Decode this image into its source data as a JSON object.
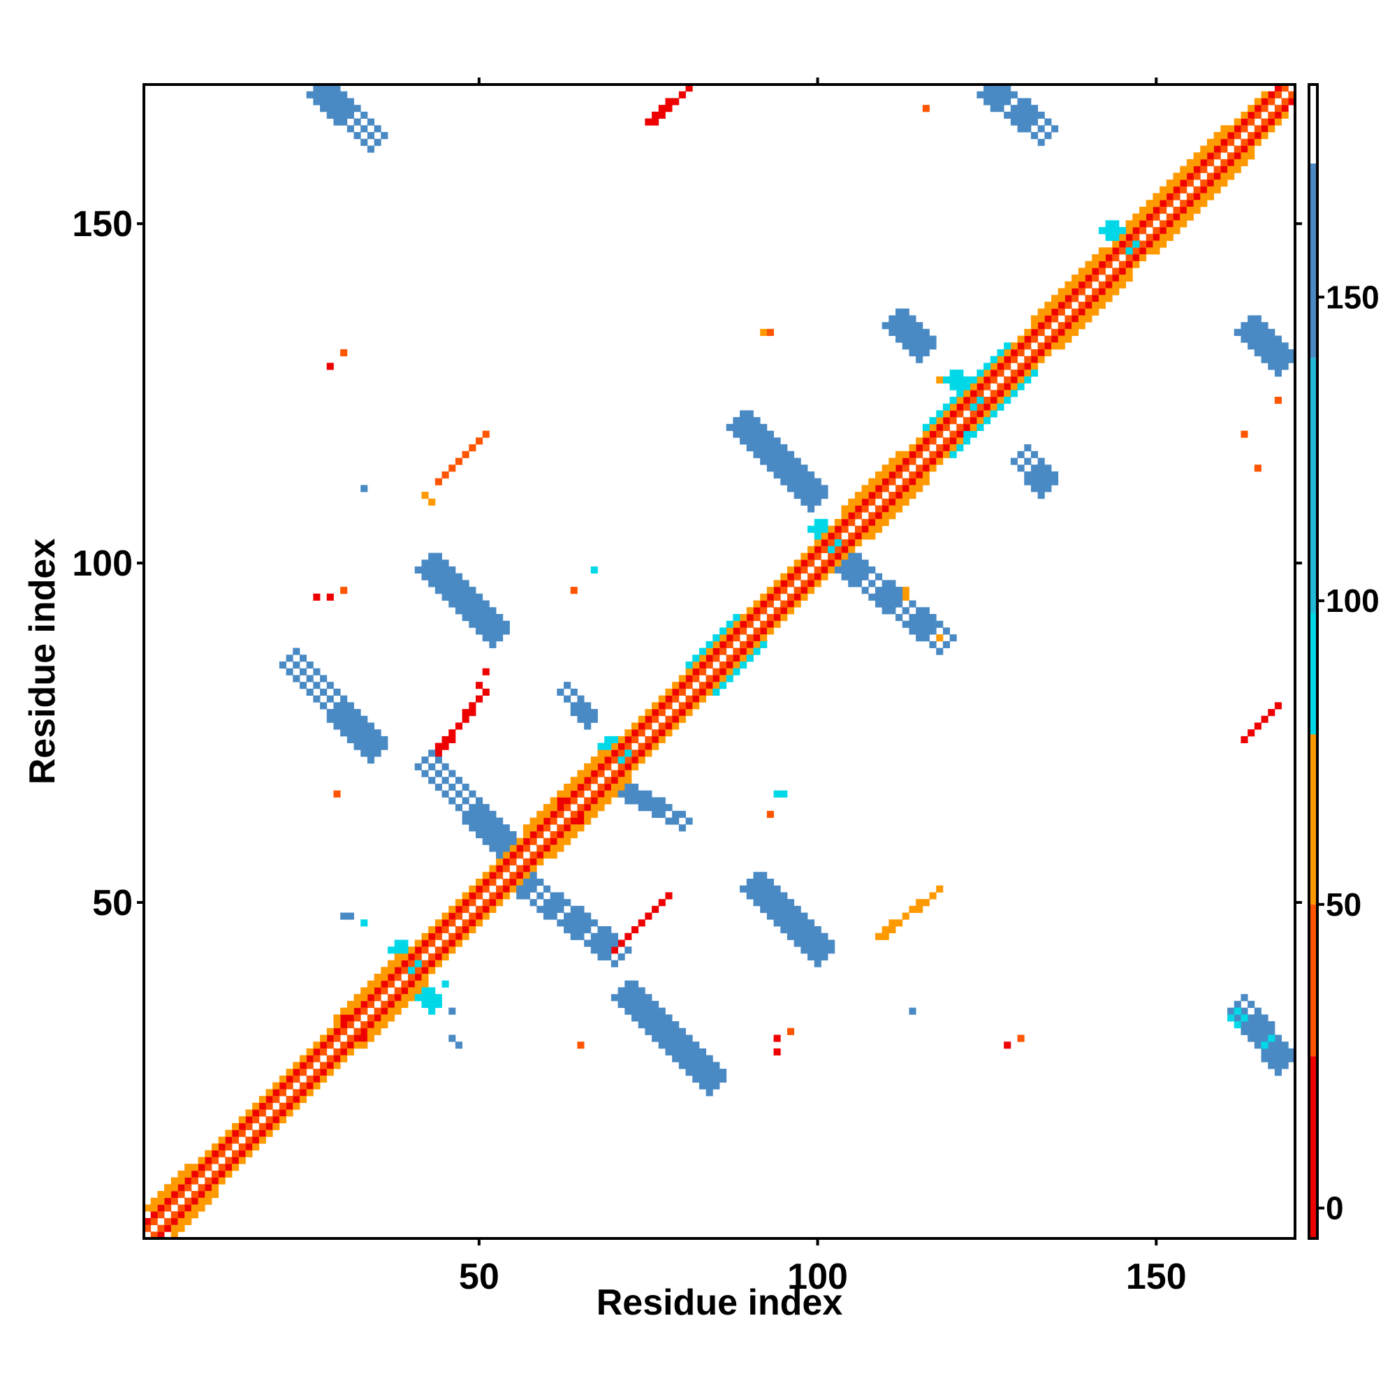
{
  "chart_data": {
    "type": "heatmap",
    "title": "",
    "xlabel": "Residue index",
    "ylabel": "Residue index",
    "xlim": [
      1,
      170
    ],
    "ylim": [
      1,
      170
    ],
    "x_ticks": [
      50,
      100,
      150
    ],
    "y_ticks": [
      50,
      100,
      150
    ],
    "grid": false,
    "colorbar": {
      "position": "right",
      "range": [
        -5,
        185
      ],
      "ticks": [
        0,
        50,
        100,
        150
      ],
      "bands": [
        {
          "from": -5,
          "to": 25,
          "color": "#ee0000"
        },
        {
          "from": 25,
          "to": 50,
          "color": "#ff5500"
        },
        {
          "from": 50,
          "to": 78,
          "color": "#ff9900"
        },
        {
          "from": 78,
          "to": 98,
          "color": "#00d8e8"
        },
        {
          "from": 98,
          "to": 140,
          "color": "#22b8d8"
        },
        {
          "from": 140,
          "to": 172,
          "color": "#4a8ac4"
        },
        {
          "from": 172,
          "to": 185,
          "color": "#ffffff"
        }
      ]
    },
    "colors": {
      "red": "#ee0000",
      "orange_red": "#ff5500",
      "orange": "#ff9900",
      "cyan": "#00d8e8",
      "light_blue": "#22b8d8",
      "steel_blue": "#4a8ac4"
    },
    "segments": [
      {
        "x0": 1,
        "y0": 3,
        "x1": 169,
        "y1": 171,
        "w": 1,
        "c": "red"
      },
      {
        "x0": 3,
        "y0": 1,
        "x1": 171,
        "y1": 169,
        "w": 1,
        "c": "red"
      },
      {
        "x0": 1,
        "y0": 2,
        "x1": 169,
        "y1": 170,
        "w": 1,
        "c": "orange_red"
      },
      {
        "x0": 2,
        "y0": 1,
        "x1": 170,
        "y1": 169,
        "w": 1,
        "c": "orange_red"
      },
      {
        "x0": 2,
        "y0": 5,
        "x1": 166,
        "y1": 169,
        "w": 1,
        "c": "orange"
      },
      {
        "x0": 5,
        "y0": 2,
        "x1": 169,
        "y1": 166,
        "w": 1,
        "c": "orange"
      },
      {
        "x0": 12,
        "y0": 15,
        "x1": 25,
        "y1": 28,
        "w": 1,
        "c": "red"
      },
      {
        "x0": 15,
        "y0": 12,
        "x1": 28,
        "y1": 25,
        "w": 1,
        "c": "red"
      },
      {
        "x0": 38,
        "y0": 41,
        "x1": 52,
        "y1": 55,
        "w": 1,
        "c": "red"
      },
      {
        "x0": 41,
        "y0": 38,
        "x1": 55,
        "y1": 52,
        "w": 1,
        "c": "red"
      },
      {
        "x0": 72,
        "y0": 75,
        "x1": 88,
        "y1": 91,
        "w": 1,
        "c": "red"
      },
      {
        "x0": 75,
        "y0": 72,
        "x1": 91,
        "y1": 88,
        "w": 1,
        "c": "red"
      },
      {
        "x0": 104,
        "y0": 107,
        "x1": 114,
        "y1": 117,
        "w": 1,
        "c": "red"
      },
      {
        "x0": 107,
        "y0": 104,
        "x1": 117,
        "y1": 114,
        "w": 1,
        "c": "red"
      },
      {
        "x0": 1,
        "y0": 5,
        "x1": 7,
        "y1": 11,
        "w": 1,
        "c": "orange"
      },
      {
        "x0": 5,
        "y0": 1,
        "x1": 11,
        "y1": 7,
        "w": 1,
        "c": "orange"
      },
      {
        "x0": 29,
        "y0": 33,
        "x1": 38,
        "y1": 42,
        "w": 1,
        "c": "orange"
      },
      {
        "x0": 33,
        "y0": 29,
        "x1": 42,
        "y1": 38,
        "w": 1,
        "c": "orange"
      },
      {
        "x0": 57,
        "y0": 61,
        "x1": 68,
        "y1": 72,
        "w": 1,
        "c": "orange"
      },
      {
        "x0": 61,
        "y0": 57,
        "x1": 72,
        "y1": 68,
        "w": 1,
        "c": "orange"
      },
      {
        "x0": 81,
        "y0": 85,
        "x1": 88,
        "y1": 92,
        "w": 1,
        "c": "cyan"
      },
      {
        "x0": 85,
        "y0": 81,
        "x1": 92,
        "y1": 88,
        "w": 1,
        "c": "cyan"
      },
      {
        "x0": 104,
        "y0": 108,
        "x1": 112,
        "y1": 116,
        "w": 1,
        "c": "orange"
      },
      {
        "x0": 108,
        "y0": 104,
        "x1": 116,
        "y1": 112,
        "w": 1,
        "c": "orange"
      },
      {
        "x0": 116,
        "y0": 120,
        "x1": 128,
        "y1": 132,
        "w": 1,
        "c": "cyan"
      },
      {
        "x0": 120,
        "y0": 116,
        "x1": 132,
        "y1": 128,
        "w": 1,
        "c": "cyan"
      },
      {
        "x0": 132,
        "y0": 136,
        "x1": 142,
        "y1": 146,
        "w": 1,
        "c": "orange"
      },
      {
        "x0": 136,
        "y0": 132,
        "x1": 146,
        "y1": 142,
        "w": 1,
        "c": "orange"
      },
      {
        "x0": 146,
        "y0": 150,
        "x1": 160,
        "y1": 164,
        "w": 1,
        "c": "orange"
      },
      {
        "x0": 150,
        "y0": 146,
        "x1": 164,
        "y1": 160,
        "w": 1,
        "c": "orange"
      },
      {
        "x0": 26,
        "y0": 170,
        "x1": 35,
        "y1": 162,
        "w": 3,
        "c": "steel_blue"
      },
      {
        "x0": 125,
        "y0": 170,
        "x1": 134,
        "y1": 163,
        "w": 3,
        "c": "steel_blue"
      },
      {
        "x0": 22,
        "y0": 86,
        "x1": 35,
        "y1": 72,
        "w": 3,
        "c": "steel_blue"
      },
      {
        "x0": 42,
        "y0": 71,
        "x1": 55,
        "y1": 57,
        "w": 3,
        "c": "steel_blue"
      },
      {
        "x0": 42,
        "y0": 100,
        "x1": 53,
        "y1": 89,
        "w": 3,
        "c": "steel_blue"
      },
      {
        "x0": 56,
        "y0": 53,
        "x1": 71,
        "y1": 42,
        "w": 3,
        "c": "steel_blue"
      },
      {
        "x0": 71,
        "y0": 37,
        "x1": 85,
        "y1": 23,
        "w": 3,
        "c": "steel_blue"
      },
      {
        "x0": 90,
        "y0": 53,
        "x1": 101,
        "y1": 42,
        "w": 3,
        "c": "steel_blue"
      },
      {
        "x0": 88,
        "y0": 121,
        "x1": 100,
        "y1": 109,
        "w": 3,
        "c": "steel_blue"
      },
      {
        "x0": 104,
        "y0": 100,
        "x1": 119,
        "y1": 88,
        "w": 3,
        "c": "steel_blue"
      },
      {
        "x0": 111,
        "y0": 136,
        "x1": 116,
        "y1": 131,
        "w": 3,
        "c": "steel_blue"
      },
      {
        "x0": 163,
        "y0": 135,
        "x1": 169,
        "y1": 129,
        "w": 3,
        "c": "steel_blue"
      },
      {
        "x0": 162,
        "y0": 35,
        "x1": 169,
        "y1": 26,
        "w": 3,
        "c": "steel_blue"
      },
      {
        "x0": 130,
        "y0": 116,
        "x1": 134,
        "y1": 111,
        "w": 3,
        "c": "steel_blue"
      },
      {
        "x0": 63,
        "y0": 82,
        "x1": 67,
        "y1": 77,
        "w": 2,
        "c": "steel_blue"
      },
      {
        "x0": 72,
        "y0": 67,
        "x1": 81,
        "y1": 62,
        "w": 2,
        "c": "steel_blue"
      },
      {
        "x0": 38,
        "y0": 44,
        "x1": 41,
        "y1": 41,
        "w": 2,
        "c": "cyan"
      },
      {
        "x0": 41,
        "y0": 38,
        "x1": 44,
        "y1": 35,
        "w": 2,
        "c": "cyan"
      },
      {
        "x0": 69,
        "y0": 74,
        "x1": 73,
        "y1": 70,
        "w": 2,
        "c": "cyan"
      },
      {
        "x0": 100,
        "y0": 106,
        "x1": 106,
        "y1": 100,
        "w": 2,
        "c": "cyan"
      },
      {
        "x0": 120,
        "y0": 128,
        "x1": 125,
        "y1": 123,
        "w": 2,
        "c": "cyan"
      },
      {
        "x0": 143,
        "y0": 150,
        "x1": 147,
        "y1": 146,
        "w": 2,
        "c": "cyan"
      },
      {
        "x0": 75,
        "y0": 165,
        "x1": 81,
        "y1": 170,
        "w": 1,
        "c": "red"
      },
      {
        "x0": 44,
        "y0": 112,
        "x1": 51,
        "y1": 119,
        "w": 1,
        "c": "orange_red"
      },
      {
        "x0": 44,
        "y0": 72,
        "x1": 51,
        "y1": 81,
        "w": 1,
        "c": "red"
      },
      {
        "x0": 70,
        "y0": 43,
        "x1": 78,
        "y1": 51,
        "w": 1,
        "c": "red"
      },
      {
        "x0": 109,
        "y0": 45,
        "x1": 118,
        "y1": 52,
        "w": 1,
        "c": "orange"
      },
      {
        "x0": 163,
        "y0": 74,
        "x1": 168,
        "y1": 79,
        "w": 1,
        "c": "red"
      },
      {
        "x0": 162,
        "y0": 34,
        "x1": 168,
        "y1": 28,
        "w": 2,
        "c": "cyan"
      }
    ],
    "points": [
      [
        116,
        167,
        "orange_red"
      ],
      [
        92,
        134,
        "orange"
      ],
      [
        93,
        134,
        "orange_red"
      ],
      [
        28,
        129,
        "red"
      ],
      [
        30,
        131,
        "orange_red"
      ],
      [
        168,
        124,
        "orange_red"
      ],
      [
        165,
        114,
        "orange_red"
      ],
      [
        33,
        111,
        "steel_blue"
      ],
      [
        67,
        99,
        "cyan"
      ],
      [
        64,
        96,
        "orange_red"
      ],
      [
        26,
        95,
        "red"
      ],
      [
        28,
        95,
        "red"
      ],
      [
        30,
        96,
        "orange_red"
      ],
      [
        113,
        96,
        "orange"
      ],
      [
        113,
        95,
        "orange"
      ],
      [
        118,
        89,
        "orange"
      ],
      [
        51,
        84,
        "red"
      ],
      [
        50,
        82,
        "red"
      ],
      [
        29,
        66,
        "orange_red"
      ],
      [
        94,
        66,
        "cyan"
      ],
      [
        95,
        66,
        "cyan"
      ],
      [
        93,
        63,
        "orange_red"
      ],
      [
        30,
        48,
        "steel_blue"
      ],
      [
        31,
        48,
        "steel_blue"
      ],
      [
        33,
        47,
        "cyan"
      ],
      [
        45,
        38,
        "cyan"
      ],
      [
        46,
        30,
        "steel_blue"
      ],
      [
        47,
        29,
        "steel_blue"
      ],
      [
        46,
        34,
        "steel_blue"
      ],
      [
        65,
        29,
        "orange_red"
      ],
      [
        94,
        30,
        "red"
      ],
      [
        96,
        31,
        "orange_red"
      ],
      [
        94,
        28,
        "red"
      ],
      [
        114,
        34,
        "steel_blue"
      ],
      [
        128,
        29,
        "red"
      ],
      [
        130,
        30,
        "orange_red"
      ],
      [
        122,
        119,
        "cyan"
      ],
      [
        123,
        119,
        "cyan"
      ],
      [
        118,
        127,
        "orange"
      ],
      [
        163,
        119,
        "orange_red"
      ],
      [
        42,
        110,
        "orange"
      ],
      [
        43,
        109,
        "orange"
      ]
    ]
  }
}
